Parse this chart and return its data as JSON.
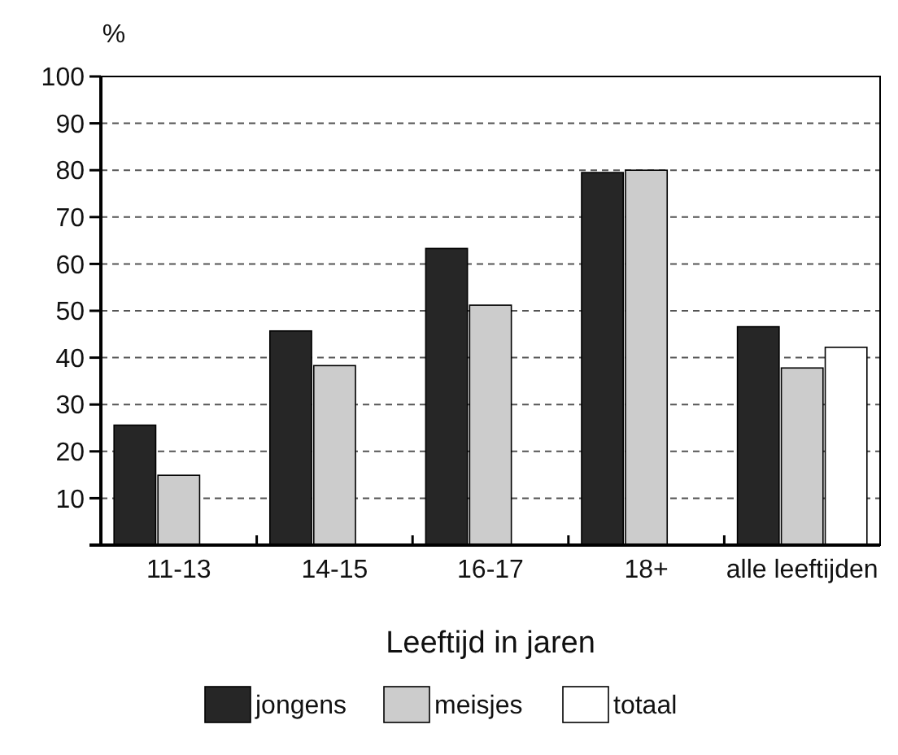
{
  "chart_data": {
    "type": "bar",
    "ylabel": "%",
    "xlabel": "Leeftijd in jaren",
    "categories": [
      "11-13",
      "14-15",
      "16-17",
      "18+",
      "alle leeftijden"
    ],
    "series": [
      {
        "name": "jongens",
        "color": "#262626",
        "values": [
          25.6,
          45.7,
          63.3,
          79.5,
          46.6
        ]
      },
      {
        "name": "meisjes",
        "color": "#cccccc",
        "values": [
          14.9,
          38.3,
          51.2,
          80,
          37.8
        ]
      },
      {
        "name": "totaal",
        "color": "#ffffff",
        "values": [
          null,
          null,
          null,
          null,
          42.2
        ]
      }
    ],
    "ylim": [
      0,
      100
    ],
    "yticks": [
      {
        "value": 0,
        "label": null
      },
      10,
      20,
      30,
      40,
      50,
      60,
      70,
      80,
      90,
      100
    ],
    "grid": "y",
    "legend": "bottom"
  }
}
